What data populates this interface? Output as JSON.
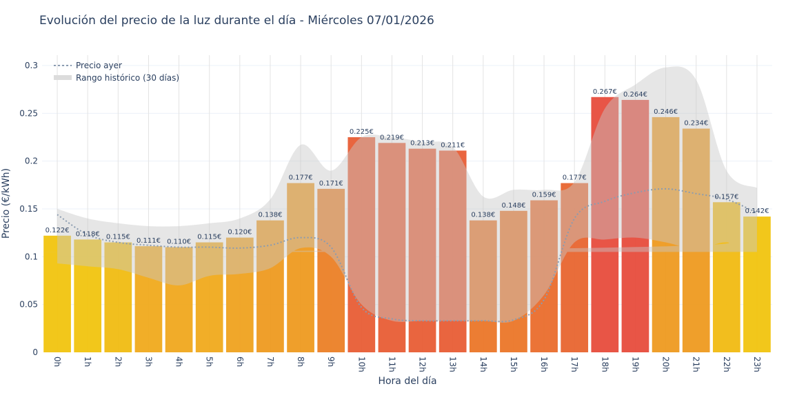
{
  "chart_data": {
    "type": "bar",
    "title": "Evolución del precio de la luz durante el día - Miércoles 07/01/2026",
    "xlabel": "Hora del día",
    "ylabel": "Precio (€/kWh)",
    "ylim": [
      0,
      0.315
    ],
    "yticks": [
      0,
      0.05,
      0.1,
      0.15,
      0.2,
      0.25,
      0.3
    ],
    "ytick_labels": [
      "0",
      "0.05",
      "0.1",
      "0.15",
      "0.2",
      "0.25",
      "0.3"
    ],
    "grid": true,
    "legend_position": "top-left",
    "categories": [
      "0h",
      "1h",
      "2h",
      "3h",
      "4h",
      "5h",
      "6h",
      "7h",
      "8h",
      "9h",
      "10h",
      "11h",
      "12h",
      "13h",
      "14h",
      "15h",
      "16h",
      "17h",
      "18h",
      "19h",
      "20h",
      "21h",
      "22h",
      "23h"
    ],
    "values": [
      0.122,
      0.118,
      0.115,
      0.111,
      0.11,
      0.115,
      0.12,
      0.138,
      0.177,
      0.171,
      0.225,
      0.219,
      0.213,
      0.211,
      0.138,
      0.148,
      0.159,
      0.177,
      0.267,
      0.264,
      0.246,
      0.234,
      0.157,
      0.142
    ],
    "data_labels": [
      "0.122€",
      "0.118€",
      "0.115€",
      "0.111€",
      "0.110€",
      "0.115€",
      "0.120€",
      "0.138€",
      "0.177€",
      "0.171€",
      "0.225€",
      "0.219€",
      "0.213€",
      "0.211€",
      "0.138€",
      "0.148€",
      "0.159€",
      "0.177€",
      "0.267€",
      "0.264€",
      "0.246€",
      "0.234€",
      "0.157€",
      "0.142€"
    ],
    "bar_colors": [
      "#F1C40F",
      "#F1C40F",
      "#F0BC12",
      "#F0AA1C",
      "#F0A81E",
      "#F0AA1C",
      "#EFA21F",
      "#EE9A20",
      "#EE9A20",
      "#EB8026",
      "#E85D35",
      "#E85D35",
      "#E85D35",
      "#E85D35",
      "#EB7628",
      "#EB7628",
      "#EA6D2C",
      "#E8652F",
      "#E74C3C",
      "#E74C3C",
      "#EE9A20",
      "#EE9A20",
      "#F1BB12",
      "#F1C40F"
    ],
    "series": [
      {
        "name": "Precio ayer",
        "style": "dotted",
        "color": "#8a9bb0",
        "values": [
          0.144,
          0.123,
          0.115,
          0.112,
          0.11,
          0.11,
          0.109,
          0.112,
          0.12,
          0.11,
          0.047,
          0.035,
          0.033,
          0.033,
          0.033,
          0.034,
          0.055,
          0.14,
          0.158,
          0.167,
          0.171,
          0.166,
          0.16,
          0.146
        ]
      },
      {
        "name": "Rango histórico (30 días)",
        "type": "band",
        "color": "#d3d3d3",
        "lower": [
          0.093,
          0.09,
          0.087,
          0.078,
          0.07,
          0.08,
          0.082,
          0.088,
          0.109,
          0.1,
          0.05,
          0.033,
          0.033,
          0.033,
          0.033,
          0.033,
          0.06,
          0.115,
          0.118,
          0.12,
          0.115,
          0.108,
          0.115,
          0.105
        ],
        "upper": [
          0.15,
          0.14,
          0.135,
          0.132,
          0.132,
          0.135,
          0.14,
          0.16,
          0.217,
          0.19,
          0.225,
          0.225,
          0.22,
          0.215,
          0.163,
          0.17,
          0.17,
          0.178,
          0.255,
          0.28,
          0.298,
          0.285,
          0.19,
          0.172
        ]
      }
    ]
  }
}
